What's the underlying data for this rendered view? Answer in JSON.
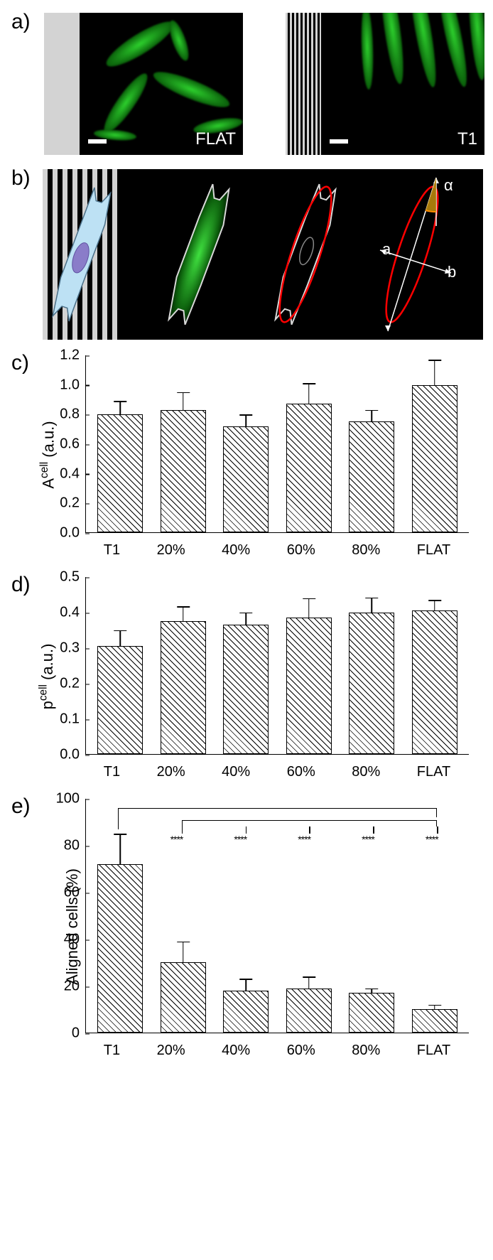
{
  "panel_a": {
    "label": "a)",
    "left": {
      "caption": "FLAT",
      "side": "flat",
      "scalebar": true
    },
    "right": {
      "caption": "T1",
      "side": "stripes",
      "scalebar": true
    },
    "cell_color": "#2dd02d",
    "background": "#000000",
    "sidebar_color": "#d3d3d3"
  },
  "panel_b": {
    "label": "b)",
    "annotations": {
      "angle": "α",
      "long_axis": "a",
      "short_axis": "b"
    },
    "schematic_cell_body": "#bde1f4",
    "schematic_nucleus": "#8a7cc9",
    "outline_color": "#d9d9d9",
    "ellipse_color": "#ff0000",
    "angle_fill": "#b8860b"
  },
  "chart_c": {
    "label": "c)",
    "type": "bar",
    "ylabel": "Aᶜᵉˡˡ (a.u.)",
    "categories": [
      "T1",
      "20%",
      "40%",
      "60%",
      "80%",
      "FLAT"
    ],
    "values": [
      0.8,
      0.83,
      0.72,
      0.87,
      0.75,
      1.0
    ],
    "err": [
      0.09,
      0.12,
      0.08,
      0.14,
      0.08,
      0.17
    ],
    "ylim": [
      0,
      1.2
    ],
    "ytick_step": 0.2,
    "bar_pattern": "hatch45",
    "border_color": "#000000",
    "label_fontsize": 22,
    "tick_fontsize": 20
  },
  "chart_d": {
    "label": "d)",
    "type": "bar",
    "ylabel": "pᶜᵉˡˡ (a.u.)",
    "categories": [
      "T1",
      "20%",
      "40%",
      "60%",
      "80%",
      "FLAT"
    ],
    "values": [
      0.305,
      0.375,
      0.365,
      0.385,
      0.4,
      0.405
    ],
    "err": [
      0.045,
      0.042,
      0.035,
      0.055,
      0.042,
      0.03
    ],
    "ylim": [
      0,
      0.5
    ],
    "ytick_step": 0.1,
    "bar_pattern": "hatch45",
    "border_color": "#000000",
    "label_fontsize": 22,
    "tick_fontsize": 20
  },
  "chart_e": {
    "label": "e)",
    "type": "bar",
    "ylabel": "Aligned cells (%)",
    "categories": [
      "T1",
      "20%",
      "40%",
      "60%",
      "80%",
      "FLAT"
    ],
    "values": [
      72,
      30,
      18,
      19,
      17,
      10
    ],
    "err": [
      13,
      9,
      5,
      5,
      2,
      2
    ],
    "ylim": [
      0,
      100
    ],
    "ytick_step": 20,
    "bar_pattern": "hatch45",
    "border_color": "#000000",
    "label_fontsize": 22,
    "tick_fontsize": 20,
    "significance": [
      {
        "from": 0,
        "to": 1,
        "label": "****"
      },
      {
        "from": 0,
        "to": 2,
        "label": "****"
      },
      {
        "from": 0,
        "to": 3,
        "label": "****"
      },
      {
        "from": 0,
        "to": 4,
        "label": "****"
      },
      {
        "from": 0,
        "to": 5,
        "label": "****"
      }
    ]
  }
}
